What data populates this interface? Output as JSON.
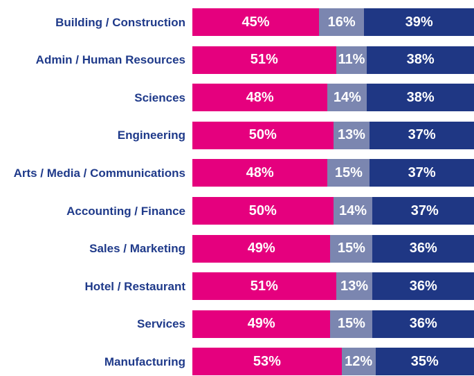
{
  "chart_data": {
    "type": "stacked-bar-horizontal",
    "categories": [
      "Building / Construction",
      "Admin / Human Resources",
      "Sciences",
      "Engineering",
      "Arts / Media / Communications",
      "Accounting / Finance",
      "Sales / Marketing",
      "Hotel / Restaurant",
      "Services",
      "Manufacturing"
    ],
    "xlim": [
      0,
      100
    ],
    "series": [
      {
        "color": "#e5007e",
        "values": [
          45,
          51,
          48,
          50,
          48,
          50,
          49,
          51,
          49,
          53
        ],
        "value_labels": [
          "45%",
          "51%",
          "48%",
          "50%",
          "48%",
          "50%",
          "49%",
          "51%",
          "49%",
          "53%"
        ]
      },
      {
        "color": "#7b86b0",
        "values": [
          16,
          11,
          14,
          13,
          15,
          14,
          15,
          13,
          15,
          12
        ],
        "value_labels": [
          "16%",
          "11%",
          "14%",
          "13%",
          "15%",
          "14%",
          "15%",
          "13%",
          "15%",
          "12%"
        ]
      },
      {
        "color": "#1f3784",
        "values": [
          39,
          38,
          38,
          37,
          37,
          37,
          36,
          36,
          36,
          35
        ],
        "value_labels": [
          "39%",
          "38%",
          "38%",
          "37%",
          "37%",
          "37%",
          "36%",
          "36%",
          "36%",
          "35%"
        ]
      }
    ]
  }
}
